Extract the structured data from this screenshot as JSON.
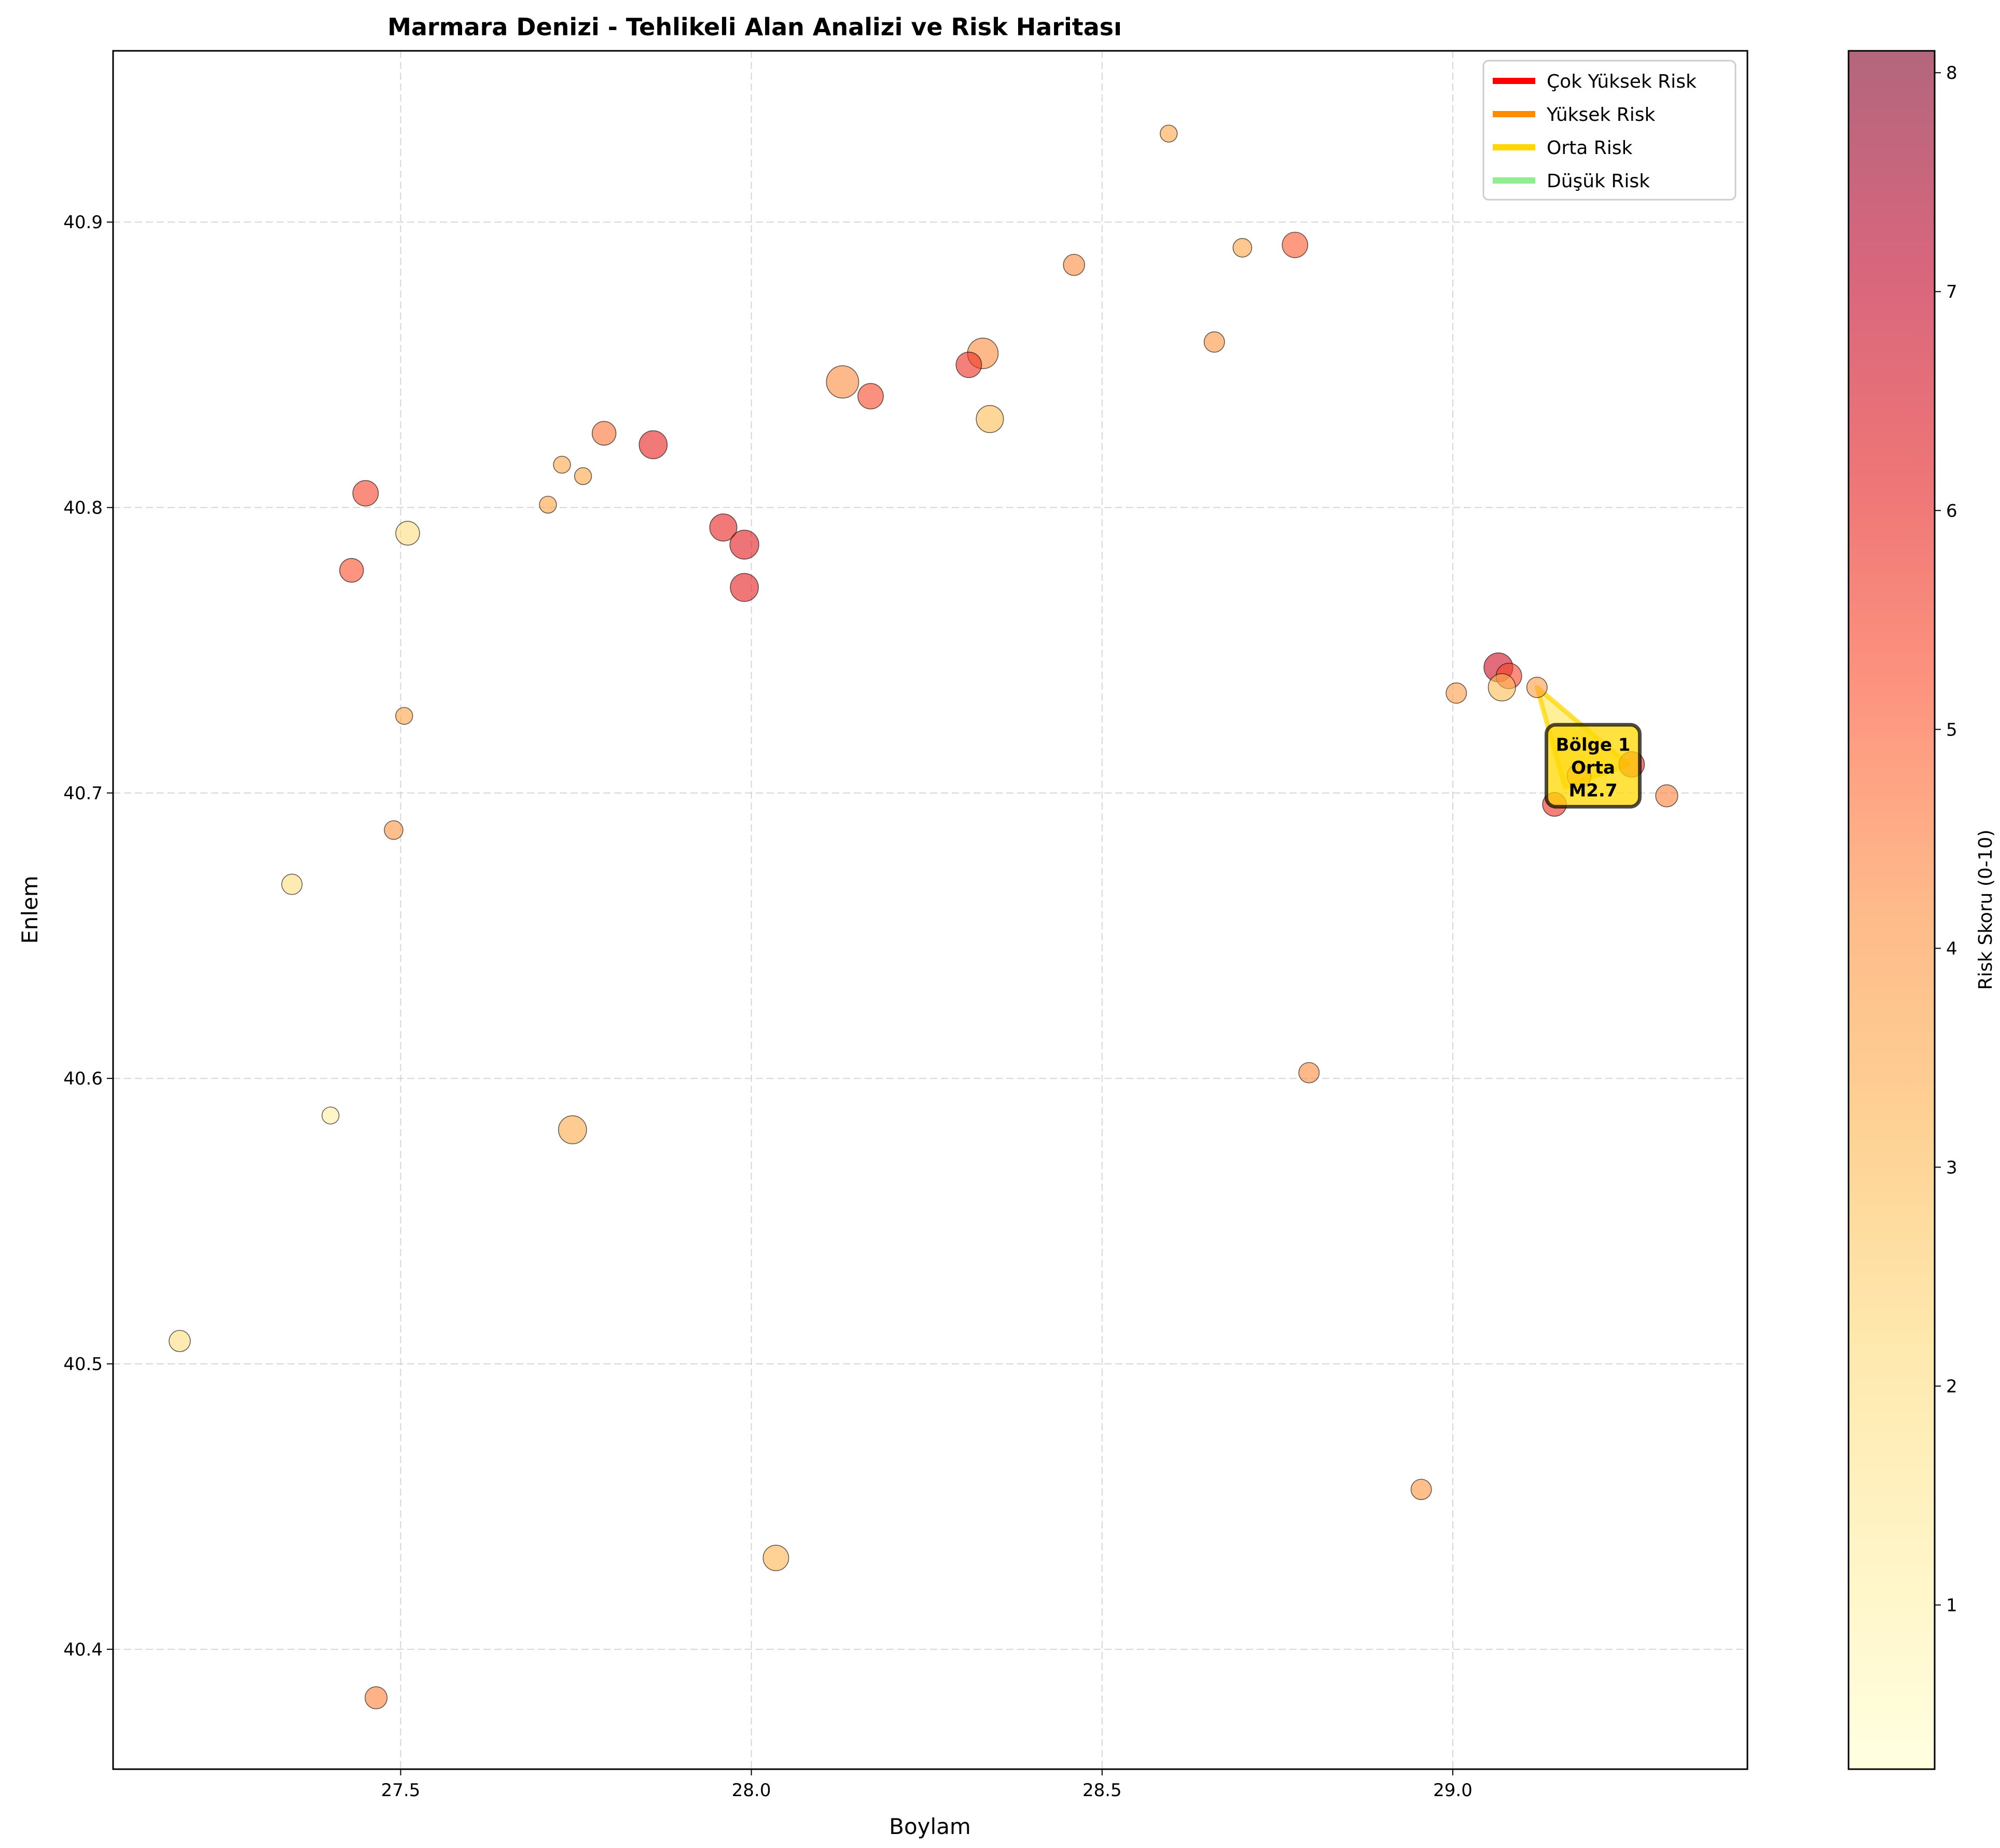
{
  "chart_data": {
    "type": "scatter",
    "title": "Marmara Denizi - Tehlikeli Alan Analizi ve Risk Haritası",
    "xlabel": "Boylam",
    "ylabel": "Enlem",
    "xlim": [
      27.09,
      29.42
    ],
    "ylim": [
      40.358,
      40.96
    ],
    "xticks": [
      "27.5",
      "28.0",
      "28.5",
      "29.0"
    ],
    "xtick_values": [
      27.5,
      28.0,
      28.5,
      29.0
    ],
    "yticks": [
      "40.4",
      "40.5",
      "40.6",
      "40.7",
      "40.8",
      "40.9"
    ],
    "ytick_values": [
      40.4,
      40.5,
      40.6,
      40.7,
      40.8,
      40.9
    ],
    "grid": true,
    "legend_position": "top-right",
    "legend": [
      {
        "label": "Çok Yüksek Risk",
        "color": "#ff0000"
      },
      {
        "label": "Yüksek Risk",
        "color": "#ff8c00"
      },
      {
        "label": "Orta Risk",
        "color": "#ffd700"
      },
      {
        "label": "Düşük Risk",
        "color": "#90ee90"
      }
    ],
    "colorbar": {
      "label": "Risk Skoru (0-10)",
      "range": [
        0.25,
        8.1
      ],
      "ticks": [
        "1",
        "2",
        "3",
        "4",
        "5",
        "6",
        "7",
        "8"
      ],
      "tick_values": [
        1,
        2,
        3,
        4,
        5,
        6,
        7,
        8
      ],
      "colormap": [
        "#ffffcc",
        "#ffeda0",
        "#fed976",
        "#feb24c",
        "#fd8d3c",
        "#fc4e2a",
        "#e31a1c",
        "#bd0026",
        "#800026"
      ]
    },
    "points": [
      {
        "x": 28.595,
        "y": 40.931,
        "risk": 3.5,
        "size": 2.0
      },
      {
        "x": 28.775,
        "y": 40.892,
        "risk": 5.0,
        "size": 3.0
      },
      {
        "x": 28.7,
        "y": 40.891,
        "risk": 3.6,
        "size": 2.2
      },
      {
        "x": 28.46,
        "y": 40.885,
        "risk": 4.2,
        "size": 2.5
      },
      {
        "x": 28.66,
        "y": 40.858,
        "risk": 4.0,
        "size": 2.4
      },
      {
        "x": 28.33,
        "y": 40.854,
        "risk": 4.2,
        "size": 3.6
      },
      {
        "x": 28.31,
        "y": 40.85,
        "risk": 5.8,
        "size": 3.0
      },
      {
        "x": 28.13,
        "y": 40.844,
        "risk": 4.2,
        "size": 3.8
      },
      {
        "x": 28.17,
        "y": 40.839,
        "risk": 5.3,
        "size": 3.0
      },
      {
        "x": 28.34,
        "y": 40.831,
        "risk": 3.0,
        "size": 3.2
      },
      {
        "x": 27.79,
        "y": 40.826,
        "risk": 4.6,
        "size": 2.8
      },
      {
        "x": 27.86,
        "y": 40.822,
        "risk": 6.0,
        "size": 3.3
      },
      {
        "x": 27.73,
        "y": 40.815,
        "risk": 3.5,
        "size": 2.0
      },
      {
        "x": 27.76,
        "y": 40.811,
        "risk": 3.6,
        "size": 2.0
      },
      {
        "x": 27.45,
        "y": 40.805,
        "risk": 5.4,
        "size": 3.0
      },
      {
        "x": 27.71,
        "y": 40.801,
        "risk": 3.6,
        "size": 2.0
      },
      {
        "x": 27.96,
        "y": 40.793,
        "risk": 6.0,
        "size": 3.2
      },
      {
        "x": 27.51,
        "y": 40.791,
        "risk": 2.0,
        "size": 2.8
      },
      {
        "x": 27.99,
        "y": 40.787,
        "risk": 6.2,
        "size": 3.4
      },
      {
        "x": 27.43,
        "y": 40.778,
        "risk": 5.2,
        "size": 2.8
      },
      {
        "x": 27.99,
        "y": 40.772,
        "risk": 6.1,
        "size": 3.3
      },
      {
        "x": 29.065,
        "y": 40.744,
        "risk": 6.7,
        "size": 3.4
      },
      {
        "x": 29.08,
        "y": 40.741,
        "risk": 5.4,
        "size": 3.0
      },
      {
        "x": 29.07,
        "y": 40.737,
        "risk": 3.0,
        "size": 3.2
      },
      {
        "x": 29.12,
        "y": 40.737,
        "risk": 3.8,
        "size": 2.4
      },
      {
        "x": 29.005,
        "y": 40.735,
        "risk": 3.8,
        "size": 2.4
      },
      {
        "x": 27.505,
        "y": 40.727,
        "risk": 3.6,
        "size": 2.0
      },
      {
        "x": 29.255,
        "y": 40.71,
        "risk": 6.0,
        "size": 3.0
      },
      {
        "x": 29.18,
        "y": 40.706,
        "risk": 4.2,
        "size": 2.8
      },
      {
        "x": 29.305,
        "y": 40.699,
        "risk": 4.4,
        "size": 2.6
      },
      {
        "x": 29.145,
        "y": 40.696,
        "risk": 5.8,
        "size": 2.8
      },
      {
        "x": 27.49,
        "y": 40.687,
        "risk": 4.0,
        "size": 2.2
      },
      {
        "x": 27.345,
        "y": 40.668,
        "risk": 2.0,
        "size": 2.4
      },
      {
        "x": 28.795,
        "y": 40.602,
        "risk": 4.2,
        "size": 2.4
      },
      {
        "x": 27.4,
        "y": 40.587,
        "risk": 1.2,
        "size": 2.0
      },
      {
        "x": 27.745,
        "y": 40.582,
        "risk": 3.4,
        "size": 3.3
      },
      {
        "x": 27.185,
        "y": 40.508,
        "risk": 2.0,
        "size": 2.5
      },
      {
        "x": 28.955,
        "y": 40.456,
        "risk": 4.0,
        "size": 2.4
      },
      {
        "x": 28.035,
        "y": 40.432,
        "risk": 3.2,
        "size": 3.0
      },
      {
        "x": 27.465,
        "y": 40.383,
        "risk": 4.4,
        "size": 2.6
      }
    ],
    "zones": [
      {
        "label": [
          "Bölge 1",
          "Orta",
          "M2.7"
        ],
        "risk_level": "Orta Risk",
        "color": "#ffd700",
        "polygon": [
          [
            29.12,
            40.737
          ],
          [
            29.16,
            40.702
          ],
          [
            29.25,
            40.71
          ]
        ],
        "label_at": [
          29.2,
          40.709
        ]
      }
    ]
  }
}
